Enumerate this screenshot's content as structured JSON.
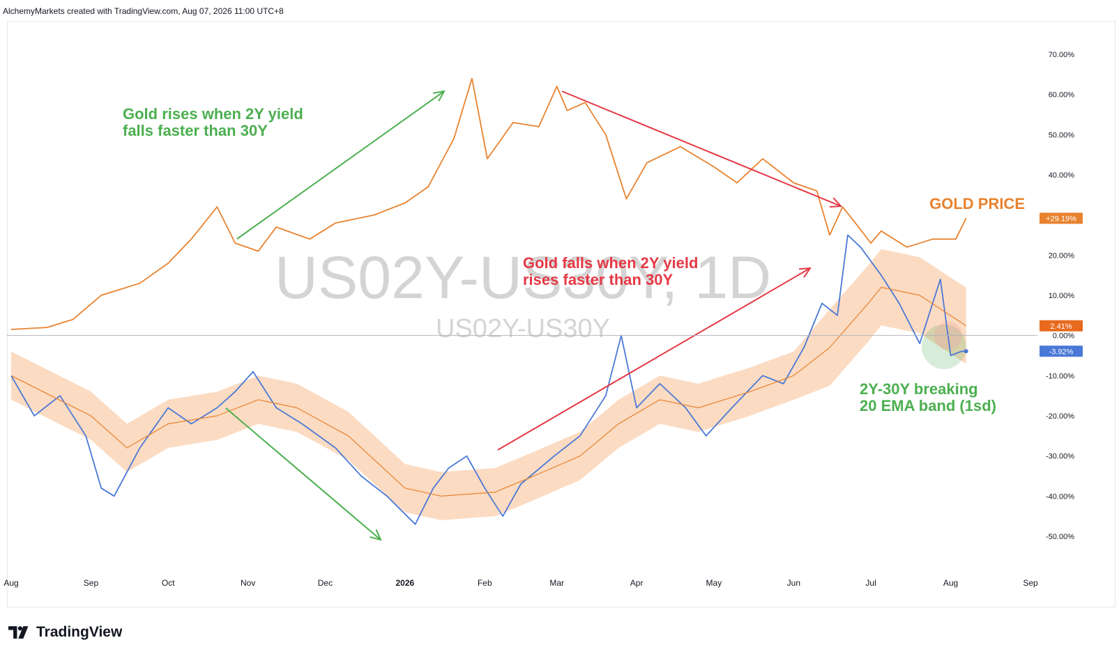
{
  "header": {
    "credit": "AlchemyMarkets created with TradingView.com, Aug 07, 2026 11:00 UTC+8"
  },
  "branding": {
    "logo_text": "TradingView",
    "logo_icon": "tradingview-logo-icon"
  },
  "watermark": {
    "symbol_large": "US02Y-US30Y, 1D",
    "symbol_small": "US02Y-US30Y"
  },
  "chart_data": {
    "type": "line",
    "title": "",
    "y_axis": {
      "unit": "%",
      "ylim": [
        -57,
        78
      ],
      "ticks": [
        70,
        60,
        50,
        40,
        20,
        10,
        0,
        -10,
        -20,
        -30,
        -40,
        -50
      ],
      "tick_labels": [
        "70.00%",
        "60.00%",
        "50.00%",
        "40.00%",
        "20.00%",
        "10.00%",
        "0.00%",
        "-10.00%",
        "-20.00%",
        "-30.00%",
        "-40.00%",
        "-50.00%"
      ],
      "position": "right"
    },
    "x_axis": {
      "labels": [
        "Aug",
        "Sep",
        "Oct",
        "Nov",
        "Dec",
        "2026",
        "Feb",
        "Mar",
        "Apr",
        "May",
        "Jun",
        "Jul",
        "Aug",
        "Sep"
      ],
      "bold_label": "2026"
    },
    "series": [
      {
        "name": "GOLD PRICE",
        "color": "#e8822e",
        "last_value_label": "+29.19%",
        "points": [
          [
            "2025-08-01",
            1.5
          ],
          [
            "2025-08-15",
            2
          ],
          [
            "2025-08-25",
            4
          ],
          [
            "2025-09-05",
            10
          ],
          [
            "2025-09-20",
            13
          ],
          [
            "2025-10-01",
            18
          ],
          [
            "2025-10-10",
            24
          ],
          [
            "2025-10-20",
            32
          ],
          [
            "2025-10-27",
            23
          ],
          [
            "2025-11-05",
            21
          ],
          [
            "2025-11-12",
            27
          ],
          [
            "2025-11-25",
            24
          ],
          [
            "2025-12-05",
            28
          ],
          [
            "2025-12-20",
            30
          ],
          [
            "2026-01-01",
            33
          ],
          [
            "2026-01-10",
            37
          ],
          [
            "2026-01-20",
            49
          ],
          [
            "2026-01-27",
            64
          ],
          [
            "2026-02-02",
            44
          ],
          [
            "2026-02-12",
            53
          ],
          [
            "2026-02-22",
            52
          ],
          [
            "2026-03-01",
            62
          ],
          [
            "2026-03-05",
            56
          ],
          [
            "2026-03-12",
            58
          ],
          [
            "2026-03-20",
            50
          ],
          [
            "2026-03-28",
            34
          ],
          [
            "2026-04-05",
            43
          ],
          [
            "2026-04-18",
            47
          ],
          [
            "2026-05-01",
            42
          ],
          [
            "2026-05-10",
            38
          ],
          [
            "2026-05-20",
            44
          ],
          [
            "2026-06-01",
            38
          ],
          [
            "2026-06-10",
            36
          ],
          [
            "2026-06-15",
            25
          ],
          [
            "2026-06-20",
            32
          ],
          [
            "2026-06-25",
            28
          ],
          [
            "2026-07-01",
            23
          ],
          [
            "2026-07-05",
            26
          ],
          [
            "2026-07-15",
            22
          ],
          [
            "2026-07-25",
            24
          ],
          [
            "2026-08-03",
            24
          ],
          [
            "2026-08-07",
            29.19
          ]
        ]
      },
      {
        "name": "US02Y-US30Y",
        "color": "#4a78d6",
        "last_value_label": "-3.92%",
        "points": [
          [
            "2025-08-01",
            -10
          ],
          [
            "2025-08-10",
            -20
          ],
          [
            "2025-08-20",
            -15
          ],
          [
            "2025-08-30",
            -25
          ],
          [
            "2025-09-05",
            -38
          ],
          [
            "2025-09-10",
            -40
          ],
          [
            "2025-09-20",
            -28
          ],
          [
            "2025-10-01",
            -18
          ],
          [
            "2025-10-10",
            -22
          ],
          [
            "2025-10-20",
            -18
          ],
          [
            "2025-10-27",
            -14
          ],
          [
            "2025-11-03",
            -9
          ],
          [
            "2025-11-12",
            -18
          ],
          [
            "2025-11-22",
            -22
          ],
          [
            "2025-12-05",
            -28
          ],
          [
            "2025-12-15",
            -35
          ],
          [
            "2025-12-25",
            -40
          ],
          [
            "2026-01-05",
            -47
          ],
          [
            "2026-01-12",
            -38
          ],
          [
            "2026-01-18",
            -33
          ],
          [
            "2026-01-25",
            -30
          ],
          [
            "2026-02-01",
            -38
          ],
          [
            "2026-02-08",
            -45
          ],
          [
            "2026-02-15",
            -37
          ],
          [
            "2026-02-28",
            -30
          ],
          [
            "2026-03-10",
            -25
          ],
          [
            "2026-03-20",
            -15
          ],
          [
            "2026-03-26",
            0
          ],
          [
            "2026-04-01",
            -18
          ],
          [
            "2026-04-10",
            -12
          ],
          [
            "2026-04-20",
            -18
          ],
          [
            "2026-04-28",
            -25
          ],
          [
            "2026-05-08",
            -18
          ],
          [
            "2026-05-20",
            -10
          ],
          [
            "2026-05-28",
            -12
          ],
          [
            "2026-06-05",
            -3
          ],
          [
            "2026-06-12",
            8
          ],
          [
            "2026-06-18",
            5
          ],
          [
            "2026-06-22",
            25
          ],
          [
            "2026-06-27",
            22
          ],
          [
            "2026-07-05",
            15
          ],
          [
            "2026-07-12",
            8
          ],
          [
            "2026-07-20",
            -2
          ],
          [
            "2026-07-28",
            14
          ],
          [
            "2026-08-01",
            -5
          ],
          [
            "2026-08-05",
            -4
          ],
          [
            "2026-08-07",
            -3.92
          ]
        ]
      },
      {
        "name": "20 EMA",
        "color": "#e8822e",
        "last_value_label": "2.41%",
        "points": [
          [
            "2025-08-01",
            -10
          ],
          [
            "2025-09-01",
            -20
          ],
          [
            "2025-09-15",
            -28
          ],
          [
            "2025-10-01",
            -22
          ],
          [
            "2025-10-20",
            -20
          ],
          [
            "2025-11-05",
            -16
          ],
          [
            "2025-11-20",
            -18
          ],
          [
            "2025-12-10",
            -25
          ],
          [
            "2026-01-01",
            -38
          ],
          [
            "2026-01-15",
            -40
          ],
          [
            "2026-02-05",
            -39
          ],
          [
            "2026-02-20",
            -35
          ],
          [
            "2026-03-10",
            -30
          ],
          [
            "2026-03-25",
            -22
          ],
          [
            "2026-04-10",
            -16
          ],
          [
            "2026-04-25",
            -18
          ],
          [
            "2026-05-15",
            -14
          ],
          [
            "2026-06-01",
            -10
          ],
          [
            "2026-06-15",
            -3
          ],
          [
            "2026-06-30",
            8
          ],
          [
            "2026-07-05",
            12
          ],
          [
            "2026-07-20",
            10
          ],
          [
            "2026-08-07",
            2.41
          ]
        ]
      }
    ],
    "annotations": [
      {
        "text": "Gold rises when 2Y yield\nfalls faster than 30Y",
        "color": "#4caf50"
      },
      {
        "text": "Gold falls when 2Y yield\nrises faster than 30Y",
        "color": "#e53945"
      },
      {
        "text": "2Y-30Y breaking\n20 EMA band (1sd)",
        "color": "#4caf50"
      },
      {
        "text": "GOLD PRICE",
        "color": "#e8822e"
      }
    ],
    "colors": {
      "gold": "#e8822e",
      "spread": "#4a78d6",
      "band_fill": "#f9cfae",
      "annotation_green": "#4caf50",
      "annotation_red": "#e53945",
      "zero_line": "#b2b5be",
      "axis_text": "#131722"
    },
    "grid": false,
    "legend": "none"
  }
}
